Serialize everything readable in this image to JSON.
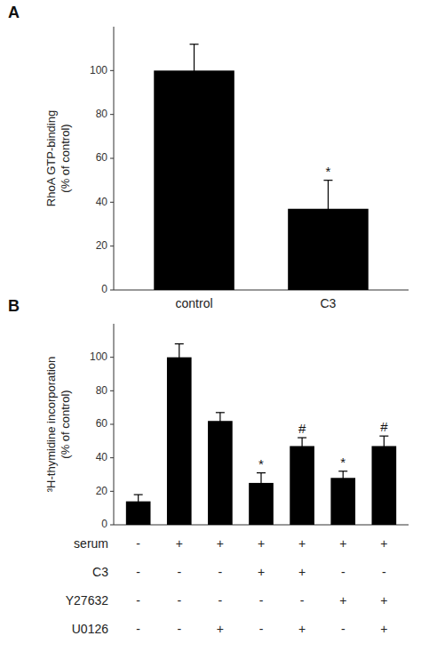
{
  "chart_data": [
    {
      "type": "bar",
      "title": "A",
      "ylabel": "RhoA GTP-binding\n(% of control)",
      "categories": [
        "control",
        "C3"
      ],
      "values": [
        100,
        37
      ],
      "errors": [
        12,
        13
      ],
      "color": "#000000",
      "annotations": [
        null,
        "*"
      ],
      "ylim": [
        0,
        120
      ],
      "yticks": [
        0,
        20,
        40,
        60,
        80,
        100
      ]
    },
    {
      "type": "bar",
      "title": "B",
      "ylabel": "³H-thymidine incorporation\n(% of control)",
      "categories": [
        null,
        null,
        null,
        null,
        null,
        null,
        null
      ],
      "values": [
        14,
        100,
        62,
        25,
        47,
        28,
        47
      ],
      "errors": [
        4,
        8,
        5,
        6,
        5,
        4,
        6
      ],
      "color": "#000000",
      "annotations": [
        null,
        null,
        null,
        "*",
        "#",
        "*",
        "#"
      ],
      "ylim": [
        0,
        120
      ],
      "yticks": [
        0,
        20,
        40,
        60,
        80,
        100
      ],
      "table_rows": [
        "serum",
        "C3",
        "Y27632",
        "U0126"
      ],
      "table_data": [
        [
          "-",
          "+",
          "+",
          "+",
          "+",
          "+",
          "+"
        ],
        [
          "-",
          "-",
          "-",
          "+",
          "+",
          "-",
          "-"
        ],
        [
          "-",
          "-",
          "-",
          "-",
          "-",
          "+",
          "+"
        ],
        [
          "-",
          "-",
          "+",
          "-",
          "+",
          "-",
          "+"
        ]
      ]
    }
  ]
}
